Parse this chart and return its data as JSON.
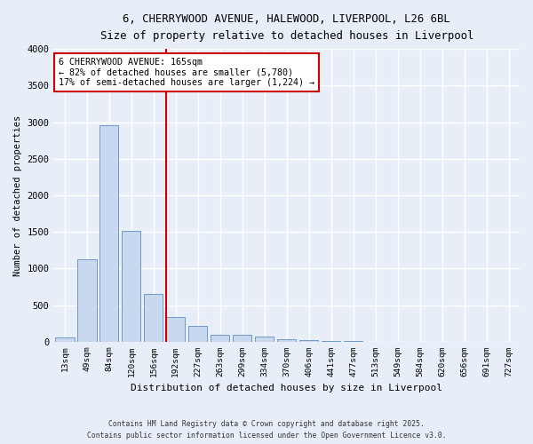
{
  "title_line1": "6, CHERRYWOOD AVENUE, HALEWOOD, LIVERPOOL, L26 6BL",
  "title_line2": "Size of property relative to detached houses in Liverpool",
  "xlabel": "Distribution of detached houses by size in Liverpool",
  "ylabel": "Number of detached properties",
  "bar_color": "#c8d8ee",
  "bar_edge_color": "#6090c0",
  "background_color": "#e8eef8",
  "fig_background_color": "#e8eef8",
  "grid_color": "#ffffff",
  "categories": [
    "13sqm",
    "49sqm",
    "84sqm",
    "120sqm",
    "156sqm",
    "192sqm",
    "227sqm",
    "263sqm",
    "299sqm",
    "334sqm",
    "370sqm",
    "406sqm",
    "441sqm",
    "477sqm",
    "513sqm",
    "549sqm",
    "584sqm",
    "620sqm",
    "656sqm",
    "691sqm",
    "727sqm"
  ],
  "values": [
    55,
    1120,
    2960,
    1520,
    650,
    340,
    215,
    90,
    90,
    65,
    35,
    20,
    10,
    5,
    2,
    1,
    1,
    0,
    0,
    0,
    0
  ],
  "ylim": [
    0,
    4000
  ],
  "yticks": [
    0,
    500,
    1000,
    1500,
    2000,
    2500,
    3000,
    3500,
    4000
  ],
  "vline_x": 4.55,
  "vline_color": "#cc0000",
  "annotation_title": "6 CHERRYWOOD AVENUE: 165sqm",
  "annotation_line1": "← 82% of detached houses are smaller (5,780)",
  "annotation_line2": "17% of semi-detached houses are larger (1,224) →",
  "annotation_box_color": "#cc0000",
  "footnote_line1": "Contains HM Land Registry data © Crown copyright and database right 2025.",
  "footnote_line2": "Contains public sector information licensed under the Open Government Licence v3.0."
}
